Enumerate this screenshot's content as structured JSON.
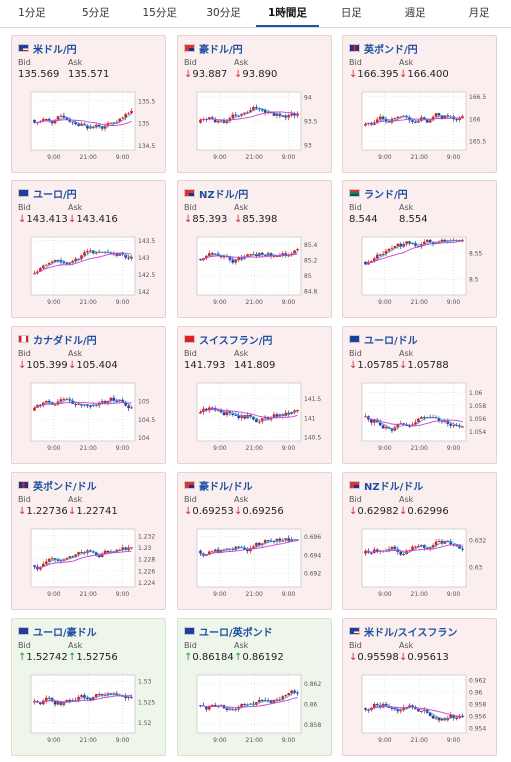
{
  "tabs": [
    {
      "label": "1分足",
      "active": false
    },
    {
      "label": "5分足",
      "active": false
    },
    {
      "label": "15分足",
      "active": false
    },
    {
      "label": "30分足",
      "active": false
    },
    {
      "label": "1時間足",
      "active": true
    },
    {
      "label": "日足",
      "active": false
    },
    {
      "label": "週足",
      "active": false
    },
    {
      "label": "月足",
      "active": false
    }
  ],
  "common": {
    "bid_label": "Bid",
    "ask_label": "Ask",
    "x_ticks": [
      "9:00",
      "21:00",
      "9:00"
    ]
  },
  "cards": [
    {
      "pair": "米ドル/円",
      "flag": "us",
      "bid": "135.569",
      "ask": "135.571",
      "dir": "none",
      "theme": "red",
      "y_ticks": [
        "135.5",
        "135",
        "134.5"
      ],
      "ylim": [
        134.4,
        135.7
      ]
    },
    {
      "pair": "豪ドル/円",
      "flag": "au",
      "bid": "93.887",
      "ask": "93.890",
      "dir": "down",
      "theme": "red",
      "y_ticks": [
        "94",
        "93.5",
        "93"
      ],
      "ylim": [
        92.9,
        94.1
      ]
    },
    {
      "pair": "英ポンド/円",
      "flag": "gb",
      "bid": "166.395",
      "ask": "166.400",
      "dir": "down",
      "theme": "red",
      "y_ticks": [
        "166.5",
        "166",
        "165.5"
      ],
      "ylim": [
        165.3,
        166.6
      ]
    },
    {
      "pair": "ユーロ/円",
      "flag": "eu",
      "bid": "143.413",
      "ask": "143.416",
      "dir": "down",
      "theme": "red",
      "y_ticks": [
        "143.5",
        "143",
        "142.5",
        "142"
      ],
      "ylim": [
        141.9,
        143.6
      ]
    },
    {
      "pair": "NZドル/円",
      "flag": "nz",
      "bid": "85.393",
      "ask": "85.398",
      "dir": "down",
      "theme": "red",
      "y_ticks": [
        "85.4",
        "85.2",
        "85",
        "84.8"
      ],
      "ylim": [
        84.75,
        85.5
      ]
    },
    {
      "pair": "ランド/円",
      "flag": "za",
      "bid": "8.544",
      "ask": "8.554",
      "dir": "none",
      "theme": "red",
      "y_ticks": [
        "8.55",
        "8.5"
      ],
      "ylim": [
        8.47,
        8.58
      ]
    },
    {
      "pair": "カナダドル/円",
      "flag": "ca",
      "bid": "105.399",
      "ask": "105.404",
      "dir": "down",
      "theme": "red",
      "y_ticks": [
        "105",
        "104.5",
        "104"
      ],
      "ylim": [
        103.9,
        105.5
      ]
    },
    {
      "pair": "スイスフラン/円",
      "flag": "ch",
      "bid": "141.793",
      "ask": "141.809",
      "dir": "none",
      "theme": "red",
      "y_ticks": [
        "141.5",
        "141",
        "140.5"
      ],
      "ylim": [
        140.4,
        141.9
      ]
    },
    {
      "pair": "ユーロ/ドル",
      "flag": "eu",
      "bid": "1.05785",
      "ask": "1.05788",
      "dir": "down",
      "theme": "red",
      "y_ticks": [
        "1.06",
        "1.058",
        "1.056",
        "1.054"
      ],
      "ylim": [
        1.0525,
        1.0615
      ]
    },
    {
      "pair": "英ポンド/ドル",
      "flag": "gb",
      "bid": "1.22736",
      "ask": "1.22741",
      "dir": "down",
      "theme": "red",
      "y_ticks": [
        "1.232",
        "1.23",
        "1.228",
        "1.226",
        "1.224"
      ],
      "ylim": [
        1.2232,
        1.2332
      ]
    },
    {
      "pair": "豪ドル/ドル",
      "flag": "au",
      "bid": "0.69253",
      "ask": "0.69256",
      "dir": "down",
      "theme": "red",
      "y_ticks": [
        "0.696",
        "0.694",
        "0.692"
      ],
      "ylim": [
        0.6905,
        0.6968
      ]
    },
    {
      "pair": "NZドル/ドル",
      "flag": "nz",
      "bid": "0.62982",
      "ask": "0.62996",
      "dir": "down",
      "theme": "red",
      "y_ticks": [
        "0.632",
        "0.63"
      ],
      "ylim": [
        0.6285,
        0.6328
      ]
    },
    {
      "pair": "ユーロ/豪ドル",
      "flag": "eu",
      "bid": "1.52742",
      "ask": "1.52756",
      "dir": "up",
      "theme": "green",
      "y_ticks": [
        "1.53",
        "1.525",
        "1.52"
      ],
      "ylim": [
        1.5175,
        1.5315
      ]
    },
    {
      "pair": "ユーロ/英ポンド",
      "flag": "eu",
      "bid": "0.86184",
      "ask": "0.86192",
      "dir": "up",
      "theme": "green",
      "y_ticks": [
        "0.862",
        "0.86",
        "0.858"
      ],
      "ylim": [
        0.8572,
        0.8628
      ]
    },
    {
      "pair": "米ドル/スイスフラン",
      "flag": "us",
      "bid": "0.95598",
      "ask": "0.95613",
      "dir": "down",
      "theme": "red",
      "y_ticks": [
        "0.962",
        "0.96",
        "0.958",
        "0.956",
        "0.954"
      ],
      "ylim": [
        0.9532,
        0.9628
      ]
    }
  ],
  "colors": {
    "candle_up": "#d02020",
    "candle_down": "#1f3f9f",
    "ma_short": "#2aa6d8",
    "ma_long": "#d040d0",
    "pair_text": "#1d4fa0"
  }
}
